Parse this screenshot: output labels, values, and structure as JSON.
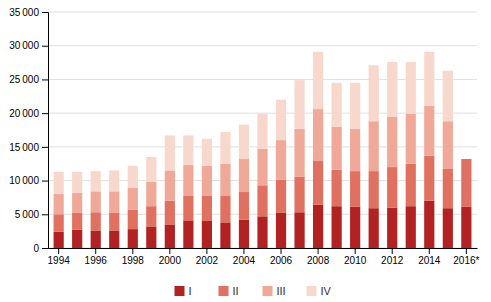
{
  "chart_data": {
    "type": "bar",
    "stacked": true,
    "categories": [
      "1994",
      null,
      "1996",
      null,
      "1998",
      null,
      "2000",
      null,
      "2002",
      null,
      "2004",
      null,
      "2006",
      null,
      "2008",
      null,
      "2010",
      null,
      "2012",
      null,
      "2014",
      null,
      "2016*"
    ],
    "series": [
      {
        "name": "I",
        "color": "#b22222",
        "values": [
          2400,
          2700,
          2600,
          2600,
          2800,
          3200,
          3500,
          4100,
          4000,
          3800,
          4200,
          4700,
          5200,
          5300,
          6400,
          6200,
          6100,
          5900,
          6000,
          6200,
          7000,
          5900,
          6100
        ]
      },
      {
        "name": "II",
        "color": "#e07060",
        "values": [
          2600,
          2500,
          2700,
          2600,
          2900,
          3000,
          3500,
          3700,
          3800,
          4000,
          4100,
          4600,
          4900,
          5300,
          6500,
          5400,
          5300,
          5500,
          6000,
          6300,
          6700,
          5900,
          7100
        ]
      },
      {
        "name": "III",
        "color": "#f0a898",
        "values": [
          3000,
          3000,
          3100,
          3200,
          3200,
          3600,
          4500,
          4500,
          4400,
          4700,
          4900,
          5400,
          5900,
          7100,
          7700,
          6400,
          6300,
          7400,
          7500,
          7400,
          7400,
          7000,
          0
        ]
      },
      {
        "name": "IV",
        "color": "#f8d8cc",
        "values": [
          3300,
          3100,
          3000,
          3100,
          3300,
          3700,
          5200,
          4400,
          4000,
          4700,
          5100,
          5200,
          6000,
          7200,
          8500,
          6500,
          6800,
          8300,
          8100,
          7700,
          8000,
          7500,
          0
        ]
      }
    ],
    "ylim": [
      0,
      35000
    ],
    "yticks": [
      0,
      {
        "value": 5000,
        "label": "5 000"
      },
      {
        "value": 10000,
        "label": "10 000"
      },
      {
        "value": 15000,
        "label": "15 000"
      },
      {
        "value": 20000,
        "label": "20 000"
      },
      {
        "value": 25000,
        "label": "25 000"
      },
      {
        "value": 30000,
        "label": "30 000"
      },
      {
        "value": 35000,
        "label": "35 000"
      }
    ],
    "grid": true,
    "legend": "bottom"
  }
}
